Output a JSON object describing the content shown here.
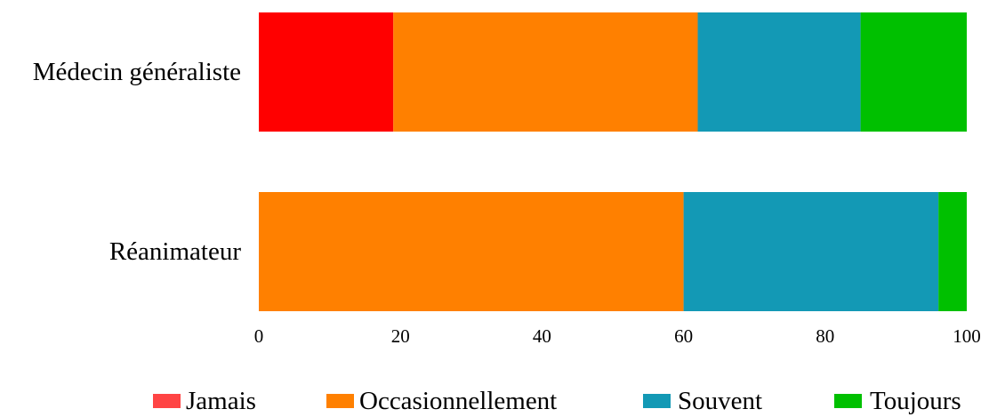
{
  "chart_data": {
    "type": "bar",
    "orientation": "horizontal",
    "stacked": true,
    "categories": [
      "Médecin généraliste",
      "Réanimateur"
    ],
    "series": [
      {
        "name": "Jamais",
        "color": "#ff0000",
        "values": [
          19,
          0
        ]
      },
      {
        "name": "Occasionnellement",
        "color": "#ff8000",
        "values": [
          43,
          60
        ]
      },
      {
        "name": "Souvent",
        "color": "#1399b5",
        "values": [
          23,
          36
        ]
      },
      {
        "name": "Toujours",
        "color": "#00c000",
        "values": [
          15,
          4
        ]
      }
    ],
    "xlim": [
      0,
      100
    ],
    "xticks": [
      0,
      20,
      40,
      60,
      80,
      100
    ],
    "grid": false,
    "legend": {
      "position": "bottom",
      "swatch_colors": [
        "#ff4444",
        "#ff8000",
        "#1399b5",
        "#00c000"
      ]
    }
  }
}
